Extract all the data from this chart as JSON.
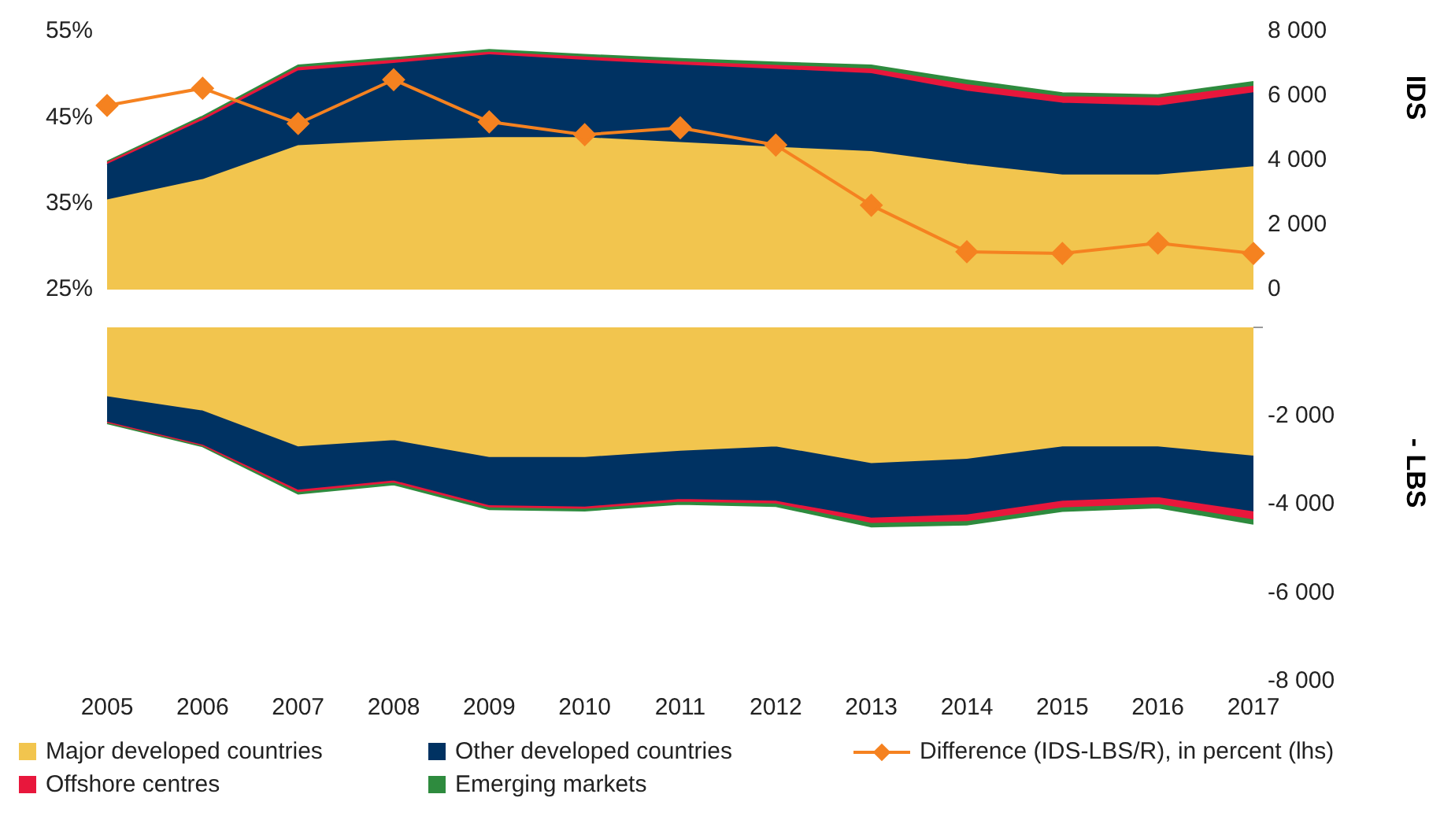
{
  "chart_data": [
    {
      "type": "area",
      "categories": [
        "2005",
        "2006",
        "2007",
        "2008",
        "2009",
        "2010",
        "2011",
        "2012",
        "2013",
        "2014",
        "2015",
        "2016",
        "2017"
      ],
      "series": [
        {
          "name": "Major developed countries",
          "color": "#f2c54e",
          "axis": "y2",
          "values": [
            2770,
            3400,
            4450,
            4600,
            4700,
            4700,
            4550,
            4400,
            4270,
            3870,
            3540,
            3540,
            3800
          ]
        },
        {
          "name": "Other developed countries",
          "color": "#003262",
          "axis": "y2",
          "values": [
            1100,
            1830,
            2320,
            2400,
            2570,
            2400,
            2400,
            2420,
            2410,
            2270,
            2230,
            2140,
            2290
          ]
        },
        {
          "name": "Difference (IDS-LBS/R), in percent (lhs)",
          "type": "line",
          "color": "#f58220",
          "axis": "y",
          "marker": "diamond",
          "values": [
            46.4,
            48.4,
            44.3,
            49.4,
            44.5,
            43.0,
            43.8,
            41.8,
            34.8,
            29.4,
            29.2,
            30.4,
            29.2
          ]
        },
        {
          "name": "Offshore centres",
          "color": "#e8173c",
          "axis": "y2",
          "values": [
            60,
            80,
            100,
            100,
            80,
            100,
            100,
            120,
            150,
            200,
            200,
            250,
            200
          ]
        },
        {
          "name": "Emerging markets",
          "color": "#2e8b3e",
          "axis": "y2",
          "values": [
            40,
            60,
            80,
            80,
            80,
            80,
            100,
            100,
            120,
            150,
            120,
            100,
            150
          ]
        }
      ],
      "ylim": [
        25,
        55
      ],
      "yticks": [
        {
          "value": 25,
          "label": "25%"
        },
        {
          "value": 35,
          "label": "35%"
        },
        {
          "value": 45,
          "label": "45%"
        },
        {
          "value": 55,
          "label": "55%"
        }
      ],
      "y2lim": [
        0,
        8000
      ],
      "y2ticks": [
        0,
        {
          "value": 2000,
          "label": "2 000"
        },
        {
          "value": 4000,
          "label": "4 000"
        },
        {
          "value": 6000,
          "label": "6 000"
        },
        {
          "value": 8000,
          "label": "8 000"
        }
      ],
      "y2label": "IDS",
      "stacked": true,
      "grid": false,
      "legend": "bottom",
      "tick_labels": "y"
    },
    {
      "type": "area",
      "categories": [
        "2005",
        "2006",
        "2007",
        "2008",
        "2009",
        "2010",
        "2011",
        "2012",
        "2013",
        "2014",
        "2015",
        "2016",
        "2017"
      ],
      "series": [
        {
          "color": "#f2c54e",
          "axis": "y2",
          "values": [
            -1540,
            -1860,
            -2670,
            -2530,
            -2910,
            -2910,
            -2770,
            -2670,
            -3050,
            -2950,
            -2670,
            -2670,
            -2880
          ]
        },
        {
          "color": "#003262",
          "axis": "y2",
          "values": [
            -570,
            -770,
            -980,
            -910,
            -1090,
            -1120,
            -1090,
            -1230,
            -1230,
            -1260,
            -1230,
            -1150,
            -1260
          ]
        },
        {
          "color": "#e8173c",
          "axis": "y2",
          "values": [
            -30,
            -30,
            -50,
            -50,
            -50,
            -50,
            -60,
            -60,
            -120,
            -150,
            -150,
            -150,
            -180
          ]
        },
        {
          "color": "#2e8b3e",
          "axis": "y2",
          "values": [
            -30,
            -30,
            -60,
            -60,
            -60,
            -60,
            -70,
            -80,
            -100,
            -100,
            -100,
            -100,
            -120
          ]
        }
      ],
      "y2lim": [
        -8000,
        0
      ],
      "y2ticks": [
        {
          "value": -8000,
          "label": "-8 000"
        },
        {
          "value": -6000,
          "label": "-6 000"
        },
        {
          "value": -4000,
          "label": "-4 000"
        },
        {
          "value": -2000,
          "label": "-2 000"
        },
        {
          "value": 0,
          "label": null
        }
      ],
      "y2label": "- LBS",
      "stacked": true,
      "grid": false
    }
  ]
}
